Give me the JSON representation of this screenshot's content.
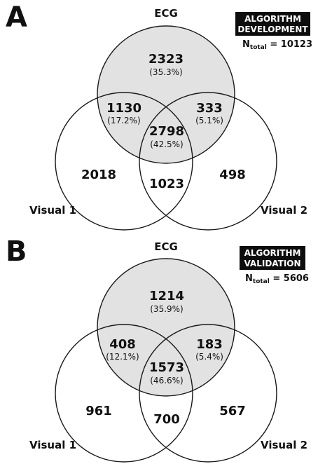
{
  "colors": {
    "shade": "#e2e2e2",
    "stroke": "#1a1a1a",
    "badge": "#0d0d0d"
  },
  "panels": [
    {
      "letter": "A",
      "badge_lines": [
        "ALGORITHM",
        "DEVELOPMENT"
      ],
      "ntotal_prefix": "N",
      "ntotal_sub": "total",
      "ntotal_value": " = 10123",
      "labels": {
        "top": "ECG",
        "left": "Visual 1",
        "right": "Visual 2"
      },
      "regions": {
        "ecg_only": {
          "count": "2323",
          "pct": "(35.3%)"
        },
        "ecg_v1": {
          "count": "1130",
          "pct": "(17.2%)"
        },
        "ecg_v2": {
          "count": "333",
          "pct": "(5.1%)"
        },
        "all_three": {
          "count": "2798",
          "pct": "(42.5%)"
        },
        "v1_only": {
          "count": "2018"
        },
        "v1_v2": {
          "count": "1023"
        },
        "v2_only": {
          "count": "498"
        }
      }
    },
    {
      "letter": "B",
      "badge_lines": [
        "ALGORITHM",
        "VALIDATION"
      ],
      "ntotal_prefix": "N",
      "ntotal_sub": "total",
      "ntotal_value": " = 5606",
      "labels": {
        "top": "ECG",
        "left": "Visual 1",
        "right": "Visual 2"
      },
      "regions": {
        "ecg_only": {
          "count": "1214",
          "pct": "(35.9%)"
        },
        "ecg_v1": {
          "count": "408",
          "pct": "(12.1%)"
        },
        "ecg_v2": {
          "count": "183",
          "pct": "(5.4%)"
        },
        "all_three": {
          "count": "1573",
          "pct": "(46.6%)"
        },
        "v1_only": {
          "count": "961"
        },
        "v1_v2": {
          "count": "700"
        },
        "v2_only": {
          "count": "567"
        }
      }
    }
  ]
}
